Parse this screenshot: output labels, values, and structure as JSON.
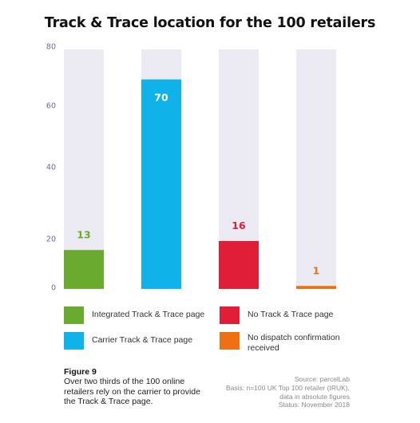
{
  "chart_data": {
    "type": "bar",
    "title": "Track & Trace location for the 100 retailers",
    "categories": [
      "Integrated Track & Trace page",
      "Carrier Track & Trace page",
      "No Track & Trace page",
      "No dispatch confirmation received"
    ],
    "values": [
      13,
      70,
      16,
      1
    ],
    "data_labels": [
      "13",
      "70",
      "16",
      "1"
    ],
    "ylim": [
      0,
      80
    ],
    "y_ticks": [
      0,
      20,
      40,
      60,
      80
    ],
    "y_tick_labels": [
      "0",
      "20",
      "40",
      "60",
      "80"
    ],
    "background_track": true,
    "grid": false,
    "legend_position": "bottom",
    "colors": [
      "#6aaa2e",
      "#10b3e9",
      "#e01e38",
      "#ef7013"
    ],
    "label_colors": [
      "#6aaa2e",
      "#ffffff",
      "#e01e38",
      "#ef7013"
    ],
    "track_color": "#ebeaf3"
  },
  "legend": [
    {
      "label": "Integrated Track & Trace page",
      "color": "#6aaa2e"
    },
    {
      "label": "No Track & Trace page",
      "color": "#e01e38"
    },
    {
      "label": "Carrier Track & Trace page",
      "color": "#10b3e9"
    },
    {
      "label": "No dispatch confirmation received",
      "color": "#ef7013"
    }
  ],
  "figure": {
    "label": "Figure 9",
    "caption": "Over two thirds of the 100 online retailers rely on the carrier to provide the Track & Trace page."
  },
  "source": {
    "line1": "Source: parcelLab",
    "line2": "Basis: n=100 UK Top 100 retailer (IRUK),",
    "line3": "data in absolute figures",
    "line4": "Status: November 2018"
  }
}
